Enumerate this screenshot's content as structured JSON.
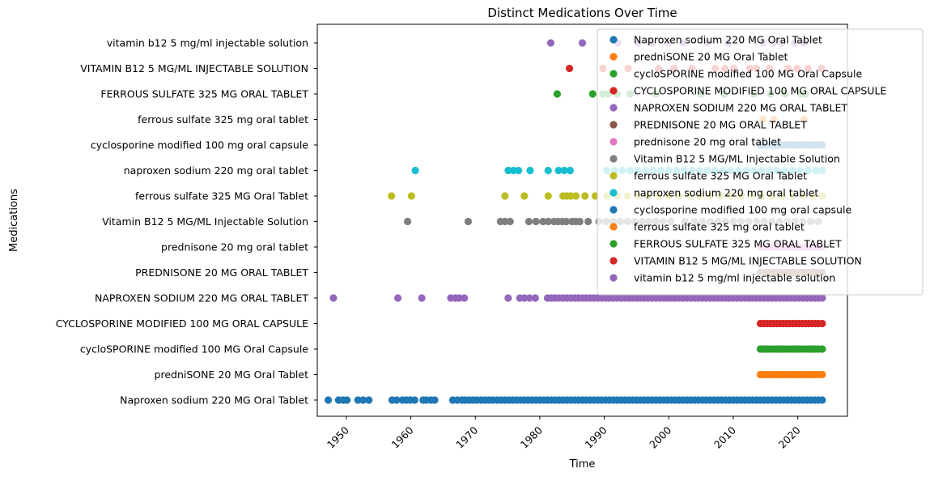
{
  "chart_data": {
    "type": "scatter",
    "title": "Distinct Medications Over Time",
    "xlabel": "Time",
    "ylabel": "Medications",
    "xlim": [
      1945.5,
      2027.7
    ],
    "x_ticks": [
      1950,
      1960,
      1970,
      1980,
      1990,
      2000,
      2010,
      2020
    ],
    "x_tick_labels": [
      "1950",
      "1960",
      "1970",
      "1980",
      "1990",
      "2000",
      "2010",
      "2020"
    ],
    "y_categories": [
      "Naproxen sodium 220 MG Oral Tablet",
      "predniSONE 20 MG Oral Tablet",
      "cycloSPORINE  modified 100 MG Oral Capsule",
      "CYCLOSPORINE  MODIFIED 100 MG ORAL CAPSULE",
      "NAPROXEN SODIUM 220 MG ORAL TABLET",
      "PREDNISONE 20 MG ORAL TABLET",
      "prednisone 20 mg oral tablet",
      "Vitamin B12 5 MG/ML Injectable Solution",
      "ferrous sulfate 325 MG Oral Tablet",
      "naproxen sodium 220 mg oral tablet",
      "cyclosporine  modified 100 mg oral capsule",
      "ferrous sulfate 325 mg oral tablet",
      "FERROUS SULFATE 325 MG ORAL TABLET",
      "VITAMIN B12 5 MG/ML INJECTABLE SOLUTION",
      "vitamin b12 5 mg/ml injectable solution"
    ],
    "legend_position": "upper right",
    "grid": false,
    "series": [
      {
        "name": "Naproxen sodium 220 MG Oral Tablet",
        "color": "#1f77b4",
        "points": [
          1947.2,
          1948.8,
          1949.5,
          1950.1,
          1951.8,
          1952.6,
          1953.5,
          1957.1,
          1957.8,
          1958.7,
          1959.3,
          1959.9,
          1960.6,
          1961.9,
          1962.4,
          1963.1,
          1963.7,
          1966.5,
          1967.2,
          1967.9,
          1968.4,
          1969,
          1969.6,
          1970.2,
          1970.9,
          1971.5,
          1972.1,
          1972.7,
          1973.4,
          1974,
          1974.6,
          1975.2,
          1975.8,
          1976.4,
          1977,
          1977.6,
          1978.2,
          1978.8,
          1979.4,
          1980,
          1980.6,
          1981.2,
          1981.8,
          1982.4,
          1983,
          1983.6,
          1984.2,
          1984.8,
          1985.4,
          1986,
          1986.6,
          1987.2,
          1987.8,
          1988.4,
          1989,
          1989.6,
          1990.2,
          1990.8,
          1991.4,
          1992,
          1992.6,
          1993.2,
          1993.8,
          1994.4,
          1995,
          1995.6,
          1996.2,
          1996.8,
          1997.4,
          1998,
          1998.6,
          1999.2,
          1999.8,
          2000.4,
          2001,
          2001.6,
          2002.2,
          2002.8,
          2003.4,
          2004,
          2004.6,
          2005.2,
          2005.8,
          2006.4,
          2007,
          2007.6,
          2008.2,
          2008.8,
          2009.4,
          2010,
          2010.6,
          2011.2,
          2011.8,
          2012.4,
          2013,
          2013.6,
          2014.2,
          2014.8,
          2015.4,
          2016,
          2016.6,
          2017.2,
          2017.8,
          2018.4,
          2019,
          2019.6,
          2020.2,
          2020.8,
          2021.4,
          2022,
          2022.6,
          2023.2,
          2023.8
        ]
      },
      {
        "name": "predniSONE 20 MG Oral Tablet",
        "color": "#ff7f0e",
        "points": [
          2014.2,
          2014.7,
          2015.2,
          2015.7,
          2016.2,
          2016.7,
          2017.2,
          2017.7,
          2018.2,
          2018.7,
          2019.2,
          2019.7,
          2020.2,
          2020.7,
          2021.2,
          2021.7,
          2022.2,
          2022.7,
          2023.2,
          2023.8
        ]
      },
      {
        "name": "cycloSPORINE  modified 100 MG Oral Capsule",
        "color": "#2ca02c",
        "points": [
          2014.2,
          2014.7,
          2015.2,
          2015.7,
          2016.2,
          2016.7,
          2017.2,
          2017.7,
          2018.2,
          2018.7,
          2019.2,
          2019.7,
          2020.2,
          2020.7,
          2021.2,
          2021.7,
          2022.2,
          2022.7,
          2023.2,
          2023.8
        ]
      },
      {
        "name": "CYCLOSPORINE  MODIFIED 100 MG ORAL CAPSULE",
        "color": "#d62728",
        "points": [
          2014.2,
          2014.7,
          2015.2,
          2015.7,
          2016.2,
          2016.7,
          2017.2,
          2017.7,
          2018.2,
          2018.7,
          2019.2,
          2019.7,
          2020.2,
          2020.7,
          2021.2,
          2021.7,
          2022.2,
          2022.7,
          2023.2,
          2023.8
        ]
      },
      {
        "name": "NAPROXEN SODIUM 220 MG ORAL TABLET",
        "color": "#9467bd",
        "points": [
          1948,
          1958,
          1961.7,
          1966.2,
          1966.9,
          1967.5,
          1968.3,
          1975.1,
          1976.9,
          1977.6,
          1978.4,
          1979.3,
          1981.2,
          1981.8,
          1982.4,
          1983,
          1983.6,
          1984.2,
          1984.8,
          1985.4,
          1986,
          1986.6,
          1987.2,
          1987.8,
          1988.4,
          1989,
          1989.6,
          1990.2,
          1990.8,
          1991.4,
          1992,
          1992.6,
          1993.2,
          1993.8,
          1994.4,
          1995,
          1995.6,
          1996.2,
          1996.8,
          1997.4,
          1998,
          1998.6,
          1999.2,
          1999.8,
          2000.4,
          2001,
          2001.6,
          2002.2,
          2002.8,
          2003.4,
          2004,
          2004.6,
          2005.2,
          2005.8,
          2006.4,
          2007,
          2007.6,
          2008.2,
          2008.8,
          2009.4,
          2010,
          2010.6,
          2011.2,
          2011.8,
          2012.4,
          2013,
          2013.6,
          2014.2,
          2014.8,
          2015.4,
          2016,
          2016.6,
          2017.2,
          2017.8,
          2018.4,
          2019,
          2019.6,
          2020.2,
          2020.8,
          2021.4,
          2022,
          2022.6,
          2023.2,
          2023.8
        ]
      },
      {
        "name": "PREDNISONE 20 MG ORAL TABLET",
        "color": "#8c564b",
        "points": [
          2014.2,
          2014.7,
          2015.2,
          2015.7,
          2016.2,
          2016.7,
          2017.2,
          2017.7,
          2018.2,
          2018.7,
          2019.2,
          2019.7,
          2020.2,
          2020.7,
          2021.2,
          2021.7,
          2022.2,
          2022.7,
          2023.2,
          2023.8
        ]
      },
      {
        "name": "prednisone 20 mg oral tablet",
        "color": "#e377c2",
        "points": [
          2014.2,
          2014.7,
          2015.2,
          2015.7,
          2016.2,
          2016.7,
          2017.2,
          2017.7,
          2018.2,
          2018.7,
          2019.2,
          2019.7,
          2020.2,
          2020.7,
          2021.2,
          2021.7,
          2022.2,
          2022.7,
          2023.2,
          2023.8
        ]
      },
      {
        "name": "Vitamin B12 5 MG/ML Injectable Solution",
        "color": "#7f7f7f",
        "points": [
          1959.5,
          1968.9,
          1973.9,
          1974.6,
          1975.4,
          1978.3,
          1979.4,
          1980.5,
          1981.3,
          1982.2,
          1982.8,
          1983.5,
          1984.1,
          1985,
          1985.6,
          1986.2,
          1987.5,
          1989.2,
          1990.3,
          1991.4,
          1992.5,
          1993.6,
          1994.7,
          1995.8,
          1996.9,
          1998,
          1999.1,
          2000.3,
          2002.5,
          2004,
          2005.2,
          2006.4,
          2007.6,
          2008.8,
          2010,
          2011.2,
          2012.4,
          2013.6,
          2014.8,
          2016,
          2017.2,
          2018.4,
          2019.6,
          2020.8,
          2022,
          2023.2
        ]
      },
      {
        "name": "ferrous sulfate 325 MG Oral Tablet",
        "color": "#bcbd22",
        "points": [
          1957,
          1960.1,
          1974.6,
          1977.6,
          1981.3,
          1983.6,
          1984.2,
          1984.8,
          1985.6,
          1987,
          1988.6,
          1990.4,
          1992,
          1993.6,
          1995.2,
          1996.8,
          1998.4,
          2000,
          2001.6,
          2003.2,
          2004.8,
          2006.4,
          2008,
          2009.6,
          2011.2,
          2012.8,
          2014.4,
          2016,
          2017.6,
          2019.2,
          2020.8,
          2022.4,
          2023.8
        ]
      },
      {
        "name": "naproxen sodium 220 mg oral tablet",
        "color": "#17becf",
        "points": [
          1960.7,
          1975.1,
          1975.9,
          1976.7,
          1978.5,
          1981.3,
          1982.9,
          1983.8,
          1984.7,
          1990.4,
          1991.6,
          1992.8,
          1994,
          1995.2,
          1996.4,
          1997.6,
          1998.8,
          2000,
          2001.2,
          2002.4,
          2003.6,
          2004.8,
          2006,
          2007.2,
          2008.4,
          2009.6,
          2010.8,
          2012,
          2013.2,
          2014.4,
          2015.6,
          2016.8,
          2018,
          2019.2,
          2020.4,
          2021.6,
          2022.8,
          2023.8
        ]
      },
      {
        "name": "cyclosporine  modified 100 mg oral capsule",
        "color": "#1f77b4",
        "points": [
          2014.2,
          2014.7,
          2015.2,
          2015.7,
          2016.2,
          2016.7,
          2017.2,
          2017.7,
          2018.2,
          2018.7,
          2019.2,
          2019.7,
          2020.2,
          2020.7,
          2021.2,
          2021.7,
          2022.2,
          2022.7,
          2023.2,
          2023.8
        ]
      },
      {
        "name": "ferrous sulfate 325 mg oral tablet",
        "color": "#ff7f0e",
        "points": [
          2014.6,
          2016.3,
          2021
        ]
      },
      {
        "name": "FERROUS SULFATE 325 MG ORAL TABLET",
        "color": "#2ca02c",
        "points": [
          1982.7,
          1988.2,
          1989.8,
          1990.6,
          1992,
          1994,
          1997.9,
          2005,
          2008.6,
          2013.2,
          2015.8,
          2018,
          2020.5,
          2021.2
        ]
      },
      {
        "name": "VITAMIN B12 5 MG/ML INJECTABLE SOLUTION",
        "color": "#d62728",
        "points": [
          1984.6,
          1989.8,
          1993.7,
          1998.4,
          2000.8,
          2003.6,
          2007.2,
          2008.7,
          2010.1,
          2012.6,
          2013.6,
          2015.6,
          2018.5,
          2019.9,
          2021.6,
          2023.7
        ]
      },
      {
        "name": "vitamin b12 5 mg/ml injectable solution",
        "color": "#9467bd",
        "points": [
          1981.7,
          1986.6,
          1992.1,
          1995.2,
          1997.4,
          2000,
          2002.2,
          2006,
          2009.2,
          2014.6,
          2016.2,
          2017.5,
          2019.5,
          2021
        ]
      }
    ]
  }
}
